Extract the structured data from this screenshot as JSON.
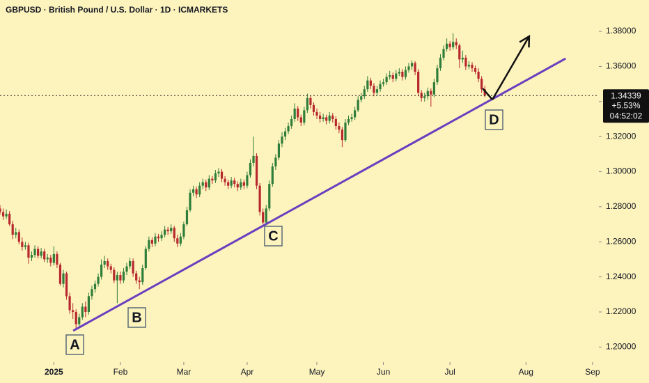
{
  "chart_data": {
    "type": "candlestick",
    "title": "GBPUSD · British Pound / U.S. Dollar · 1D · ICMARKETS",
    "up_color": "#2f7d3a",
    "down_color": "#b7282e",
    "line_color": "#6a3fbf",
    "xlim": [
      0,
      189
    ],
    "xticks": [
      {
        "value": 17,
        "label": "2025"
      },
      {
        "value": 38,
        "label": "Feb"
      },
      {
        "value": 58,
        "label": "Mar"
      },
      {
        "value": 78,
        "label": "Apr"
      },
      {
        "value": 100,
        "label": "May"
      },
      {
        "value": 121,
        "label": "Jun"
      },
      {
        "value": 142,
        "label": "Jul"
      },
      {
        "value": 166,
        "label": "Aug"
      },
      {
        "value": 187,
        "label": "Sep"
      }
    ],
    "ylim": [
      1.1914,
      1.3979
    ],
    "yticks": [
      {
        "value": 1.2,
        "label": "1.20000"
      },
      {
        "value": 1.22,
        "label": "1.22000"
      },
      {
        "value": 1.24,
        "label": "1.24000"
      },
      {
        "value": 1.26,
        "label": "1.26000"
      },
      {
        "value": 1.28,
        "label": "1.28000"
      },
      {
        "value": 1.3,
        "label": "1.30000"
      },
      {
        "value": 1.32,
        "label": "1.32000"
      },
      {
        "value": 1.34,
        "label": "1.34000"
      },
      {
        "value": 1.36,
        "label": "1.36000"
      },
      {
        "value": 1.38,
        "label": "1.38000"
      }
    ],
    "open": [
      1.279,
      1.277,
      1.2745,
      1.276,
      1.27,
      1.264,
      1.2655,
      1.26,
      1.257,
      1.258,
      1.251,
      1.2525,
      1.256,
      1.252,
      1.2545,
      1.25,
      1.251,
      1.248,
      1.253,
      1.247,
      1.236,
      1.242,
      1.229,
      1.221,
      1.22,
      1.213,
      1.217,
      1.223,
      1.22,
      1.229,
      1.233,
      1.236,
      1.24,
      1.247,
      1.249,
      1.246,
      1.244,
      1.238,
      1.241,
      1.238,
      1.243,
      1.246,
      1.249,
      1.242,
      1.238,
      1.237,
      1.245,
      1.256,
      1.261,
      1.259,
      1.263,
      1.262,
      1.264,
      1.267,
      1.266,
      1.268,
      1.262,
      1.259,
      1.263,
      1.27,
      1.278,
      1.288,
      1.29,
      1.287,
      1.292,
      1.294,
      1.291,
      1.296,
      1.295,
      1.299,
      1.3,
      1.296,
      1.294,
      1.292,
      1.295,
      1.293,
      1.291,
      1.294,
      1.292,
      1.298,
      1.305,
      1.309,
      1.292,
      1.277,
      1.271,
      1.279,
      1.293,
      1.303,
      1.308,
      1.316,
      1.32,
      1.323,
      1.326,
      1.33,
      1.336,
      1.331,
      1.328,
      1.335,
      1.342,
      1.338,
      1.334,
      1.332,
      1.33,
      1.331,
      1.329,
      1.332,
      1.33,
      1.326,
      1.324,
      1.318,
      1.328,
      1.33,
      1.331,
      1.335,
      1.341,
      1.343,
      1.347,
      1.352,
      1.349,
      1.345,
      1.347,
      1.35,
      1.351,
      1.354,
      1.355,
      1.353,
      1.356,
      1.357,
      1.354,
      1.358,
      1.36,
      1.362,
      1.357,
      1.345,
      1.342,
      1.343,
      1.346,
      1.344,
      1.351,
      1.359,
      1.365,
      1.37,
      1.373,
      1.371,
      1.374,
      1.372,
      1.364,
      1.365,
      1.36,
      1.361,
      1.359,
      1.357,
      1.353,
      1.347
    ],
    "high": [
      1.281,
      1.279,
      1.2785,
      1.2775,
      1.272,
      1.268,
      1.267,
      1.2625,
      1.26,
      1.2595,
      1.2545,
      1.258,
      1.2575,
      1.2565,
      1.256,
      1.253,
      1.2525,
      1.2575,
      1.2545,
      1.248,
      1.244,
      1.243,
      1.231,
      1.225,
      1.2215,
      1.219,
      1.225,
      1.226,
      1.231,
      1.235,
      1.238,
      1.242,
      1.25,
      1.252,
      1.2505,
      1.2475,
      1.2455,
      1.243,
      1.243,
      1.245,
      1.248,
      1.251,
      1.2505,
      1.2435,
      1.24,
      1.247,
      1.2575,
      1.263,
      1.2625,
      1.265,
      1.2645,
      1.266,
      1.269,
      1.2685,
      1.27,
      1.269,
      1.264,
      1.265,
      1.2715,
      1.28,
      1.29,
      1.292,
      1.2915,
      1.294,
      1.296,
      1.2955,
      1.298,
      1.2975,
      1.301,
      1.302,
      1.3015,
      1.2975,
      1.2955,
      1.297,
      1.2965,
      1.2945,
      1.296,
      1.2955,
      1.3,
      1.307,
      1.32,
      1.3105,
      1.2935,
      1.279,
      1.281,
      1.295,
      1.305,
      1.31,
      1.318,
      1.3225,
      1.325,
      1.328,
      1.332,
      1.339,
      1.3375,
      1.3325,
      1.337,
      1.3445,
      1.3435,
      1.3395,
      1.336,
      1.334,
      1.333,
      1.3325,
      1.334,
      1.3335,
      1.3315,
      1.328,
      1.3255,
      1.33,
      1.332,
      1.333,
      1.337,
      1.343,
      1.345,
      1.349,
      1.3545,
      1.3535,
      1.3505,
      1.349,
      1.352,
      1.353,
      1.356,
      1.3575,
      1.3565,
      1.358,
      1.359,
      1.3585,
      1.36,
      1.362,
      1.3635,
      1.363,
      1.3585,
      1.3465,
      1.345,
      1.348,
      1.3475,
      1.353,
      1.361,
      1.367,
      1.372,
      1.376,
      1.3745,
      1.379,
      1.376,
      1.373,
      1.369,
      1.3665,
      1.363,
      1.3625,
      1.3605,
      1.359,
      1.3545,
      1.349
    ],
    "low": [
      1.2755,
      1.2725,
      1.273,
      1.269,
      1.2615,
      1.262,
      1.2585,
      1.255,
      1.2555,
      1.2475,
      1.249,
      1.251,
      1.2505,
      1.2505,
      1.2485,
      1.248,
      1.246,
      1.2465,
      1.245,
      1.235,
      1.234,
      1.227,
      1.219,
      1.216,
      1.21,
      1.211,
      1.2155,
      1.217,
      1.2185,
      1.227,
      1.231,
      1.2345,
      1.2385,
      1.245,
      1.244,
      1.242,
      1.2365,
      1.225,
      1.236,
      1.2365,
      1.241,
      1.2445,
      1.24,
      1.236,
      1.233,
      1.2355,
      1.244,
      1.2545,
      1.257,
      1.2575,
      1.26,
      1.2605,
      1.2625,
      1.264,
      1.2645,
      1.26,
      1.257,
      1.2575,
      1.2615,
      1.269,
      1.277,
      1.286,
      1.285,
      1.2855,
      1.29,
      1.289,
      1.2895,
      1.293,
      1.2935,
      1.297,
      1.294,
      1.292,
      1.29,
      1.2905,
      1.291,
      1.289,
      1.2895,
      1.29,
      1.2905,
      1.2965,
      1.303,
      1.29,
      1.275,
      1.27,
      1.27,
      1.2775,
      1.2915,
      1.301,
      1.3065,
      1.314,
      1.318,
      1.3215,
      1.3245,
      1.3285,
      1.329,
      1.326,
      1.3265,
      1.3335,
      1.336,
      1.332,
      1.33,
      1.328,
      1.3285,
      1.327,
      1.3275,
      1.328,
      1.324,
      1.322,
      1.314,
      1.317,
      1.3265,
      1.3285,
      1.3295,
      1.334,
      1.3395,
      1.3415,
      1.3455,
      1.347,
      1.343,
      1.3435,
      1.3455,
      1.3485,
      1.3495,
      1.3525,
      1.351,
      1.3515,
      1.3545,
      1.352,
      1.3525,
      1.3565,
      1.358,
      1.355,
      1.343,
      1.34,
      1.34,
      1.341,
      1.337,
      1.3425,
      1.3495,
      1.3575,
      1.3635,
      1.3685,
      1.369,
      1.3695,
      1.37,
      1.359,
      1.362,
      1.358,
      1.3585,
      1.357,
      1.3555,
      1.351,
      1.345,
      1.3425
    ],
    "close": [
      1.277,
      1.2745,
      1.276,
      1.27,
      1.264,
      1.2655,
      1.26,
      1.257,
      1.258,
      1.251,
      1.2525,
      1.256,
      1.252,
      1.2545,
      1.25,
      1.251,
      1.248,
      1.253,
      1.247,
      1.236,
      1.242,
      1.229,
      1.221,
      1.22,
      1.213,
      1.217,
      1.223,
      1.22,
      1.229,
      1.233,
      1.236,
      1.24,
      1.247,
      1.249,
      1.246,
      1.244,
      1.238,
      1.241,
      1.238,
      1.243,
      1.246,
      1.249,
      1.242,
      1.238,
      1.237,
      1.245,
      1.256,
      1.261,
      1.259,
      1.263,
      1.262,
      1.264,
      1.267,
      1.266,
      1.268,
      1.262,
      1.259,
      1.263,
      1.27,
      1.278,
      1.288,
      1.29,
      1.287,
      1.292,
      1.294,
      1.291,
      1.296,
      1.295,
      1.299,
      1.3,
      1.296,
      1.294,
      1.292,
      1.295,
      1.293,
      1.291,
      1.294,
      1.292,
      1.298,
      1.305,
      1.309,
      1.292,
      1.277,
      1.271,
      1.279,
      1.293,
      1.303,
      1.308,
      1.316,
      1.32,
      1.323,
      1.326,
      1.33,
      1.336,
      1.331,
      1.328,
      1.335,
      1.342,
      1.338,
      1.334,
      1.332,
      1.33,
      1.331,
      1.329,
      1.332,
      1.33,
      1.326,
      1.324,
      1.318,
      1.328,
      1.33,
      1.331,
      1.335,
      1.341,
      1.343,
      1.347,
      1.352,
      1.349,
      1.345,
      1.347,
      1.35,
      1.351,
      1.354,
      1.355,
      1.353,
      1.356,
      1.357,
      1.354,
      1.358,
      1.36,
      1.362,
      1.357,
      1.345,
      1.342,
      1.343,
      1.346,
      1.344,
      1.351,
      1.359,
      1.365,
      1.37,
      1.373,
      1.371,
      1.374,
      1.372,
      1.364,
      1.365,
      1.36,
      1.361,
      1.359,
      1.357,
      1.353,
      1.347,
      1.3434
    ],
    "last_price": 1.34339,
    "change": 5.53,
    "change_label": "+5.53%",
    "countdown": "04:52:02",
    "trendline": {
      "x": [
        23.1,
        178.5
      ],
      "y": [
        1.2093,
        1.3645
      ]
    },
    "projection": {
      "x": [
        155.4,
        167
      ],
      "y": [
        1.3411,
        1.3772
      ]
    },
    "annotations": [
      "A",
      "B",
      "C",
      "D"
    ]
  }
}
